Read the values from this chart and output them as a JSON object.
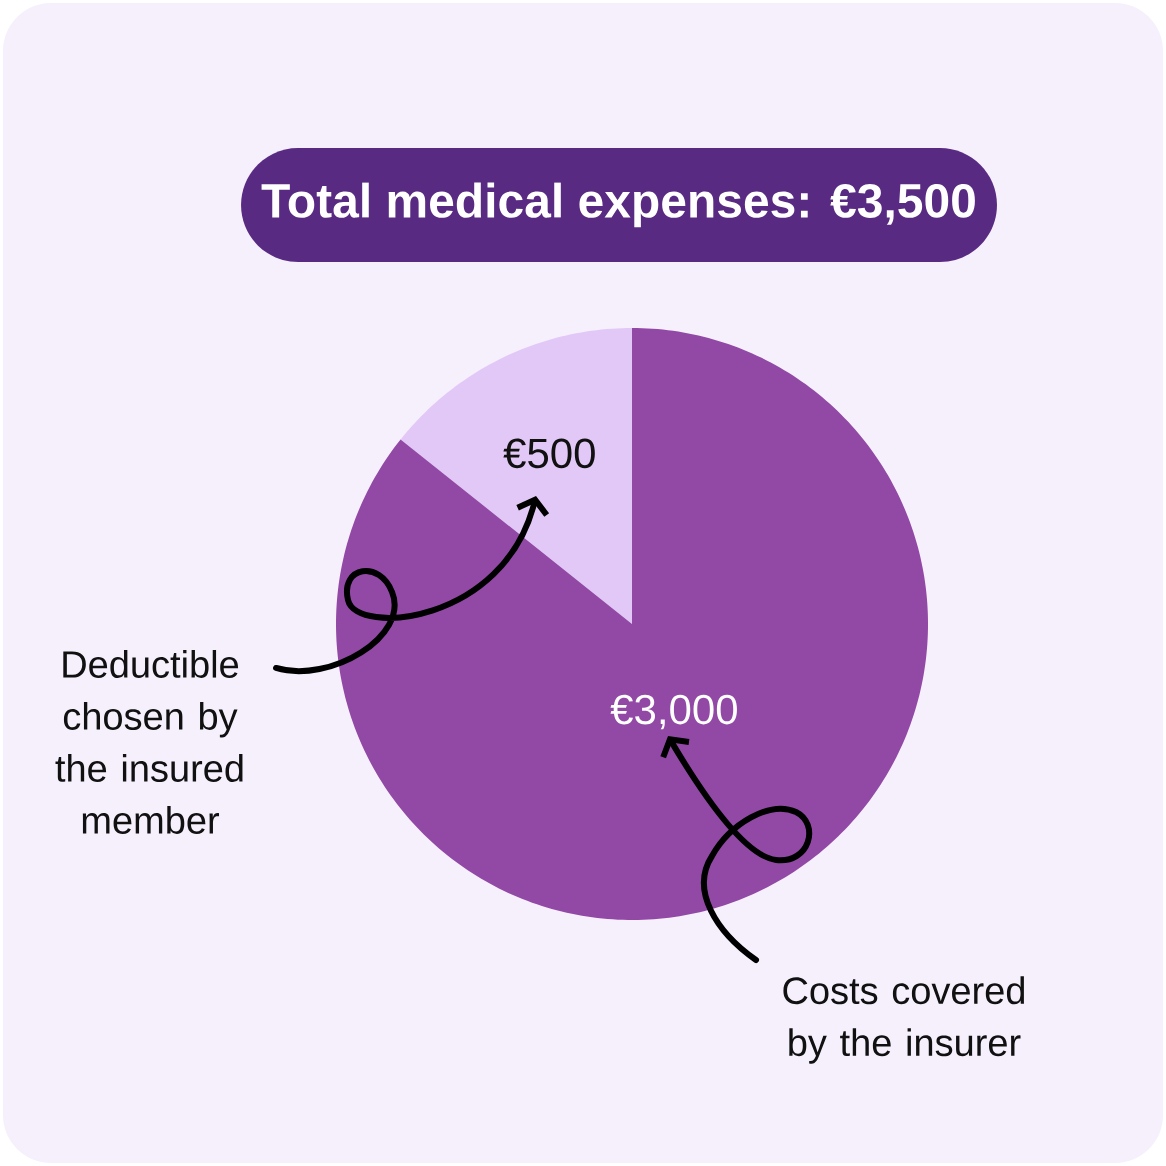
{
  "chart_data": {
    "type": "pie",
    "title": "Total medical expenses: €3,500",
    "categories": [
      "Deductible chosen by the insured member",
      "Costs covered by the insurer"
    ],
    "values": [
      500,
      3000
    ],
    "colors": [
      "#e2c8f7",
      "#9249a6"
    ],
    "value_labels": [
      "€500",
      "€3,000"
    ]
  }
}
